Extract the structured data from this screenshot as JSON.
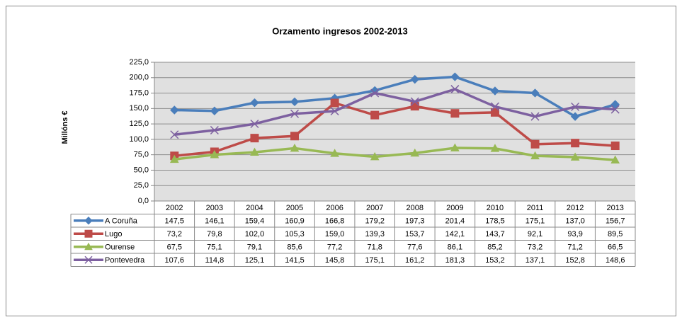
{
  "chart_data": {
    "type": "line",
    "title": "Orzamento ingresos 2002-2013",
    "y_label": "Millóns €",
    "categories": [
      "2002",
      "2003",
      "2004",
      "2005",
      "2006",
      "2007",
      "2008",
      "2009",
      "2010",
      "2011",
      "2012",
      "2013"
    ],
    "ylim": [
      0,
      225
    ],
    "yticks": [
      {
        "value": 0,
        "label": "0,0"
      },
      {
        "value": 25,
        "label": "25,0"
      },
      {
        "value": 50,
        "label": "50,0"
      },
      {
        "value": 75,
        "label": "75,0"
      },
      {
        "value": 100,
        "label": "100,0"
      },
      {
        "value": 125,
        "label": "125,0"
      },
      {
        "value": 150,
        "label": "150,0"
      },
      {
        "value": 175,
        "label": "175,0"
      },
      {
        "value": 200,
        "label": "200,0"
      },
      {
        "value": 225,
        "label": "225,0"
      }
    ],
    "grid": true,
    "series": [
      {
        "name": "A Coruña",
        "color": "#4a7ebb",
        "marker": "diamond",
        "values": [
          147.5,
          146.1,
          159.4,
          160.9,
          166.8,
          179.2,
          197.3,
          201.4,
          178.5,
          175.1,
          137.0,
          156.7
        ],
        "value_labels": [
          "147,5",
          "146,1",
          "159,4",
          "160,9",
          "166,8",
          "179,2",
          "197,3",
          "201,4",
          "178,5",
          "175,1",
          "137,0",
          "156,7"
        ]
      },
      {
        "name": "Lugo",
        "color": "#be4b48",
        "marker": "square",
        "values": [
          73.2,
          79.8,
          102.0,
          105.3,
          159.0,
          139.3,
          153.7,
          142.1,
          143.7,
          92.1,
          93.9,
          89.5
        ],
        "value_labels": [
          "73,2",
          "79,8",
          "102,0",
          "105,3",
          "159,0",
          "139,3",
          "153,7",
          "142,1",
          "143,7",
          "92,1",
          "93,9",
          "89,5"
        ]
      },
      {
        "name": "Ourense",
        "color": "#98b954",
        "marker": "triangle",
        "values": [
          67.5,
          75.1,
          79.1,
          85.6,
          77.2,
          71.8,
          77.6,
          86.1,
          85.2,
          73.2,
          71.2,
          66.5
        ],
        "value_labels": [
          "67,5",
          "75,1",
          "79,1",
          "85,6",
          "77,2",
          "71,8",
          "77,6",
          "86,1",
          "85,2",
          "73,2",
          "71,2",
          "66,5"
        ]
      },
      {
        "name": "Pontevedra",
        "color": "#7d60a0",
        "marker": "x",
        "values": [
          107.6,
          114.8,
          125.1,
          141.5,
          145.8,
          175.1,
          161.2,
          181.3,
          153.2,
          137.1,
          152.8,
          148.6
        ],
        "value_labels": [
          "107,6",
          "114,8",
          "125,1",
          "141,5",
          "145,8",
          "175,1",
          "161,2",
          "181,3",
          "153,2",
          "137,1",
          "152,8",
          "148,6"
        ]
      }
    ]
  }
}
